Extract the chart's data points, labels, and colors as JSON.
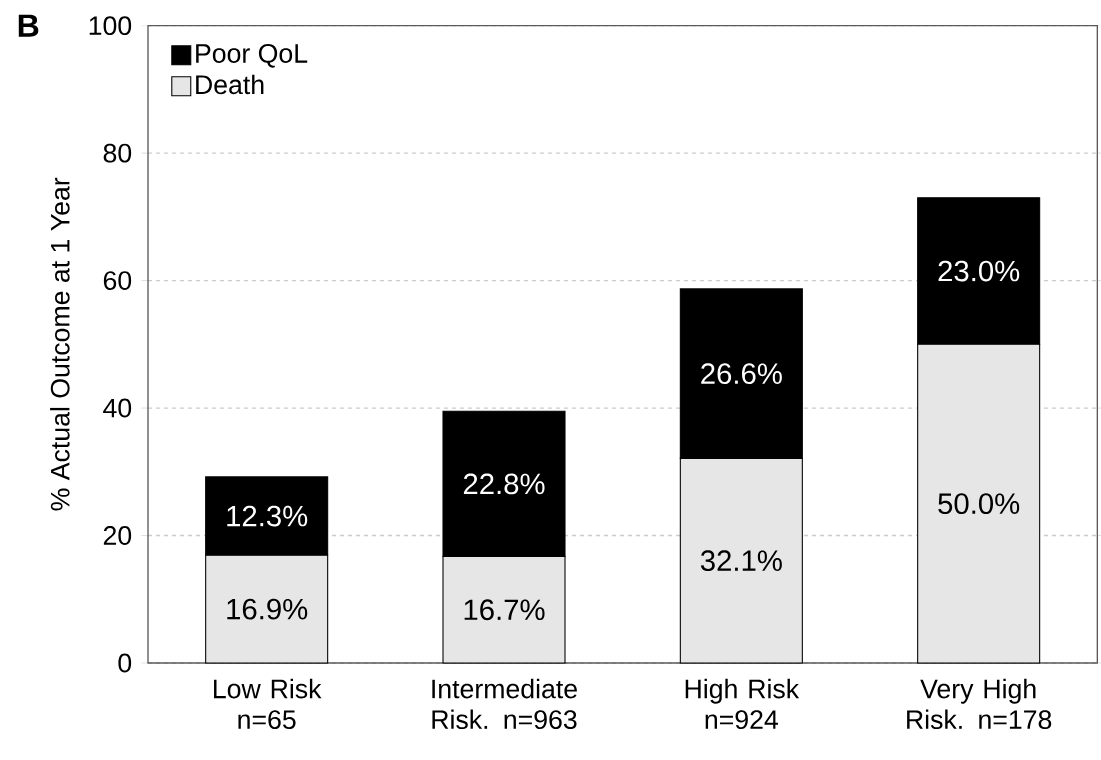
{
  "chart_data": {
    "type": "bar",
    "stacked": true,
    "categories": [
      "Low Risk n=65",
      "Intermediate Risk. n=963",
      "High Risk n=924",
      "Very High Risk. n=178"
    ],
    "series": [
      {
        "name": "Death",
        "color": "#e6e6e6",
        "values": [
          16.9,
          16.7,
          32.1,
          50.0
        ],
        "value_labels": [
          "16.9%",
          "16.7%",
          "32.1%",
          "50.0%"
        ]
      },
      {
        "name": "Poor QoL",
        "color": "#000000",
        "values": [
          12.3,
          22.8,
          26.6,
          23.0
        ],
        "value_labels": [
          "12.3%",
          "22.8%",
          "26.6%",
          "23.0%"
        ]
      }
    ],
    "ylabel": "% Actual Outcome at 1 Year",
    "ylim": [
      0,
      100
    ],
    "yticks": [
      0,
      20,
      40,
      60,
      80,
      100
    ],
    "grid": "y",
    "legend": "top left",
    "annotations": [
      "B"
    ]
  }
}
